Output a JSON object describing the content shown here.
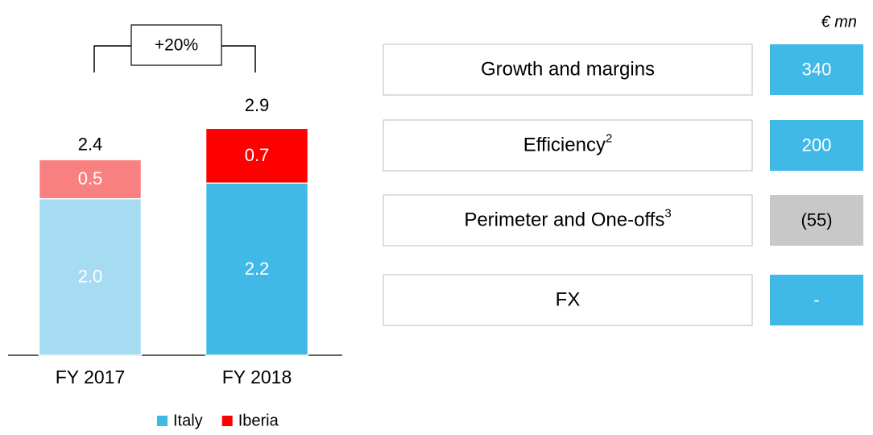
{
  "chart_data": {
    "type": "stacked-bar",
    "categories": [
      "FY 2017",
      "FY 2018"
    ],
    "series": [
      {
        "name": "Italy",
        "color": "#41b9e6",
        "point_colors": [
          "#a6dcf2",
          "#41b9e6"
        ],
        "values": [
          2.0,
          2.2
        ],
        "value_labels": [
          "2.0",
          "2.2"
        ]
      },
      {
        "name": "Iberia",
        "color": "#ff0000",
        "point_colors": [
          "#f98080",
          "#ff0000"
        ],
        "values": [
          0.5,
          0.7
        ]
      }
    ],
    "totals": [
      2.4,
      2.9
    ],
    "annotation": "+20%",
    "ylim": [
      0,
      3.5
    ],
    "legend": "bottom"
  },
  "table": {
    "unit": "€ mn",
    "rows": [
      {
        "label": "Growth and margins",
        "value": 340,
        "color": "#41b9e6",
        "text_color": "#ffffff"
      },
      {
        "label": "Efficiency",
        "note": "2",
        "value": 200,
        "color": "#41b9e6",
        "text_color": "#ffffff"
      },
      {
        "label": "Perimeter and One-offs",
        "note": "3",
        "value": "(55)",
        "color": "#c8c8c8",
        "text_color": "#000000"
      },
      {
        "label": "FX",
        "value": "-",
        "color": "#41b9e6",
        "text_color": "#ffffff"
      }
    ]
  }
}
